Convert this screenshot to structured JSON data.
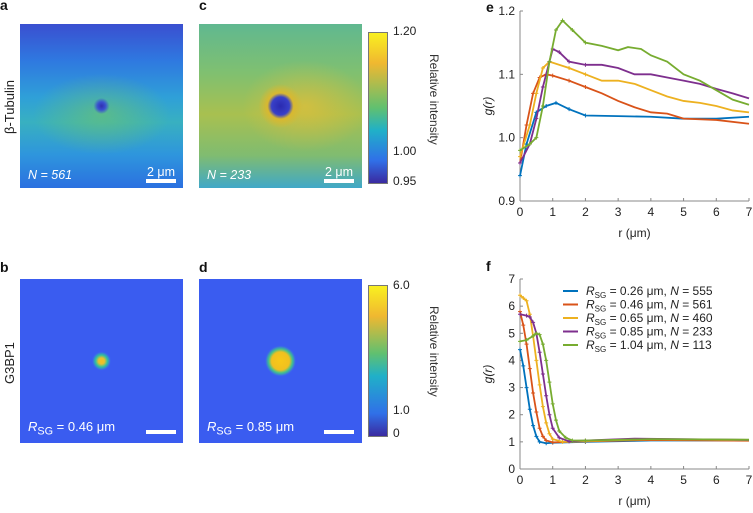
{
  "panels": {
    "a": {
      "label": "a",
      "count_text": "N = 561",
      "scale_text": "2 μm"
    },
    "b": {
      "label": "b",
      "radius_text": "R",
      "radius_sub": "SG",
      "radius_value": " = 0.46 μm"
    },
    "c": {
      "label": "c",
      "count_text": "N = 233",
      "scale_text": "2 μm"
    },
    "d": {
      "label": "d",
      "radius_text": "R",
      "radius_sub": "SG",
      "radius_value": " = 0.85 μm"
    }
  },
  "row_labels": {
    "top": "β-Tubulin",
    "bottom": "G3BP1"
  },
  "colorbar_top": {
    "title": "Relative intensity",
    "ticks": [
      "1.20",
      "1.00",
      "0.95"
    ]
  },
  "colorbar_bottom": {
    "title": "Relative intensity",
    "ticks": [
      "6.0",
      "1.0",
      "0"
    ]
  },
  "chart_data": [
    {
      "panel": "e",
      "type": "line",
      "xlabel": "r (μm)",
      "ylabel": "g(r)",
      "xlim": [
        0,
        7
      ],
      "ylim": [
        0.9,
        1.2
      ],
      "xticks": [
        "0",
        "1",
        "2",
        "3",
        "4",
        "5",
        "6",
        "7"
      ],
      "yticks": [
        "0.9",
        "1.0",
        "1.1",
        "1.2"
      ],
      "series": [
        {
          "name": "RSG = 0.26 μm, N = 555",
          "color": "#0072bd",
          "x": [
            0,
            0.2,
            0.5,
            0.8,
            1.1,
            1.5,
            2,
            3,
            4,
            5,
            6,
            7
          ],
          "y": [
            0.94,
            0.99,
            1.04,
            1.05,
            1.055,
            1.045,
            1.035,
            1.034,
            1.033,
            1.03,
            1.03,
            1.033
          ]
        },
        {
          "name": "RSG = 0.46 μm, N = 561",
          "color": "#d95319",
          "x": [
            0,
            0.2,
            0.4,
            0.6,
            0.8,
            1,
            1.5,
            2,
            2.5,
            3,
            3.5,
            4,
            4.5,
            5,
            6,
            7
          ],
          "y": [
            0.96,
            1.02,
            1.07,
            1.095,
            1.1,
            1.098,
            1.09,
            1.08,
            1.07,
            1.058,
            1.048,
            1.04,
            1.038,
            1.03,
            1.028,
            1.022
          ]
        },
        {
          "name": "RSG = 0.65 μm, N = 460",
          "color": "#edb120",
          "x": [
            0,
            0.3,
            0.5,
            0.7,
            0.9,
            1.5,
            2,
            2.5,
            3,
            3.5,
            4,
            4.5,
            5,
            5.5,
            6,
            6.5,
            7
          ],
          "y": [
            0.97,
            1.02,
            1.07,
            1.11,
            1.12,
            1.11,
            1.1,
            1.09,
            1.09,
            1.085,
            1.075,
            1.065,
            1.058,
            1.055,
            1.05,
            1.043,
            1.04
          ]
        },
        {
          "name": "RSG = 0.85 μm, N = 233",
          "color": "#7e2f8e",
          "x": [
            0,
            0.3,
            0.5,
            0.7,
            0.9,
            1,
            1.2,
            1.5,
            2,
            2.5,
            3,
            3.5,
            4,
            4.5,
            5,
            5.5,
            6,
            6.5,
            7
          ],
          "y": [
            0.96,
            0.99,
            1.03,
            1.08,
            1.12,
            1.14,
            1.135,
            1.12,
            1.115,
            1.115,
            1.11,
            1.1,
            1.1,
            1.095,
            1.09,
            1.085,
            1.077,
            1.07,
            1.062
          ]
        },
        {
          "name": "RSG = 1.04 μm, N = 113",
          "color": "#77ac30",
          "x": [
            0,
            0.3,
            0.5,
            0.7,
            0.9,
            1.1,
            1.3,
            1.6,
            2,
            2.5,
            3,
            3.3,
            3.7,
            4,
            4.5,
            5,
            5.5,
            6,
            6.5,
            7
          ],
          "y": [
            0.98,
            0.99,
            1.0,
            1.05,
            1.12,
            1.17,
            1.185,
            1.17,
            1.15,
            1.145,
            1.138,
            1.143,
            1.14,
            1.13,
            1.12,
            1.1,
            1.09,
            1.075,
            1.06,
            1.052
          ]
        }
      ]
    },
    {
      "panel": "f",
      "type": "line",
      "xlabel": "r (μm)",
      "ylabel": "g(r)",
      "xlim": [
        0,
        7
      ],
      "ylim": [
        0,
        7
      ],
      "xticks": [
        "0",
        "1",
        "2",
        "3",
        "4",
        "5",
        "6",
        "7"
      ],
      "yticks": [
        "0",
        "1",
        "2",
        "3",
        "4",
        "5",
        "6",
        "7"
      ],
      "legend_position": "top-right",
      "series": [
        {
          "name": "RSG = 0.26 μm, N = 555",
          "r_value": " = 0.26 μm, ",
          "n_value": " = 555",
          "color": "#0072bd",
          "x": [
            0,
            0.1,
            0.2,
            0.3,
            0.4,
            0.5,
            0.6,
            0.8,
            1,
            2,
            4,
            7
          ],
          "y": [
            4.4,
            3.8,
            3.0,
            2.2,
            1.6,
            1.2,
            1.0,
            0.95,
            0.97,
            1.0,
            1.05,
            1.05
          ]
        },
        {
          "name": "RSG = 0.46 μm, N = 561",
          "r_value": " = 0.46 μm, ",
          "n_value": " = 561",
          "color": "#d95319",
          "x": [
            0,
            0.1,
            0.2,
            0.3,
            0.4,
            0.5,
            0.6,
            0.7,
            0.8,
            1,
            2,
            4,
            7
          ],
          "y": [
            5.8,
            5.3,
            4.6,
            3.7,
            2.8,
            2.1,
            1.5,
            1.2,
            1.05,
            0.98,
            1.02,
            1.07,
            1.04
          ]
        },
        {
          "name": "RSG = 0.65 μm, N = 460",
          "r_value": " = 0.65 μm, ",
          "n_value": " = 460",
          "color": "#edb120",
          "x": [
            0,
            0.1,
            0.2,
            0.3,
            0.4,
            0.5,
            0.6,
            0.7,
            0.8,
            0.9,
            1,
            1.3,
            2,
            4,
            7
          ],
          "y": [
            6.4,
            6.3,
            6.2,
            5.7,
            4.9,
            4.0,
            3.1,
            2.3,
            1.7,
            1.3,
            1.1,
            1.0,
            1.03,
            1.1,
            1.06
          ]
        },
        {
          "name": "RSG = 0.85 μm, N = 233",
          "r_value": " = 0.85 μm, ",
          "n_value": " = 233",
          "color": "#7e2f8e",
          "x": [
            0,
            0.2,
            0.3,
            0.4,
            0.5,
            0.6,
            0.7,
            0.8,
            0.9,
            1,
            1.2,
            1.5,
            2,
            3.5,
            7
          ],
          "y": [
            5.7,
            5.65,
            5.6,
            5.4,
            5.0,
            4.3,
            3.5,
            2.7,
            2.0,
            1.5,
            1.15,
            1.02,
            1.05,
            1.12,
            1.07
          ]
        },
        {
          "name": "RSG = 1.04 μm, N = 113",
          "r_value": " = 1.04 μm, ",
          "n_value": " = 113",
          "color": "#77ac30",
          "x": [
            0,
            0.2,
            0.4,
            0.5,
            0.6,
            0.7,
            0.8,
            0.9,
            1,
            1.1,
            1.2,
            1.4,
            1.6,
            2,
            4,
            7
          ],
          "y": [
            4.7,
            4.75,
            4.9,
            5.0,
            4.95,
            4.6,
            4.0,
            3.2,
            2.4,
            1.8,
            1.4,
            1.15,
            1.05,
            1.05,
            1.1,
            1.08
          ]
        }
      ]
    }
  ]
}
